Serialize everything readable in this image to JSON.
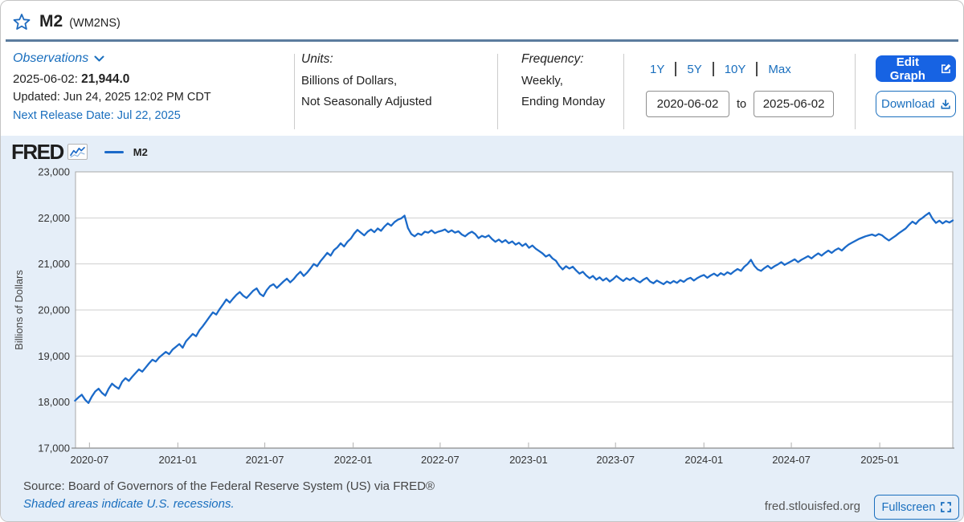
{
  "header": {
    "title": "M2",
    "series_id": "(WM2NS)"
  },
  "info": {
    "observations_label": "Observations",
    "latest_date": "2025-06-02:",
    "latest_value": "21,944.0",
    "updated": "Updated: Jun 24, 2025 12:02 PM CDT",
    "next_release": "Next Release Date: Jul 22, 2025",
    "units_label": "Units:",
    "units_line1": "Billions of Dollars,",
    "units_line2": "Not Seasonally Adjusted",
    "frequency_label": "Frequency:",
    "frequency_line1": "Weekly,",
    "frequency_line2": "Ending Monday",
    "ranges": [
      "1Y",
      "5Y",
      "10Y",
      "Max"
    ],
    "date_from": "2020-06-02",
    "to_label": "to",
    "date_to": "2025-06-02",
    "edit_graph_label": "Edit Graph",
    "download_label": "Download"
  },
  "chart": {
    "logo_text": "FRED",
    "legend_label": "M2",
    "site": "fred.stlouisfed.org",
    "fullscreen_label": "Fullscreen",
    "footer_source": "Source: Board of Governors of the Federal Reserve System (US) via FRED®",
    "footer_note": "Shaded areas indicate U.S. recessions."
  },
  "colors": {
    "line_blue": "#1b6ac9",
    "link_blue": "#1a6fbe",
    "button_blue": "#1763e3",
    "header_rule": "#5b7c9e",
    "chart_bg": "#e5eef8",
    "grid_gray": "#cfcfcf"
  },
  "chart_data": {
    "type": "line",
    "title": "M2",
    "ylabel": "Billions of Dollars",
    "ylim": [
      17000,
      23000
    ],
    "yticks": [
      17000,
      18000,
      19000,
      20000,
      21000,
      22000,
      23000
    ],
    "xtick_labels": [
      "2020-07",
      "2021-01",
      "2021-07",
      "2022-01",
      "2022-07",
      "2023-01",
      "2023-07",
      "2024-01",
      "2024-07",
      "2025-01"
    ],
    "x_range": [
      "2020-06-02",
      "2025-06-02"
    ],
    "grid": "horizontal",
    "legend_position": "top-left",
    "series": [
      {
        "name": "M2",
        "points": [
          [
            "2020-06-01",
            18030
          ],
          [
            "2020-06-08",
            18100
          ],
          [
            "2020-06-15",
            18160
          ],
          [
            "2020-06-22",
            18050
          ],
          [
            "2020-06-29",
            17980
          ],
          [
            "2020-07-06",
            18120
          ],
          [
            "2020-07-13",
            18230
          ],
          [
            "2020-07-20",
            18290
          ],
          [
            "2020-07-27",
            18200
          ],
          [
            "2020-08-03",
            18140
          ],
          [
            "2020-08-10",
            18290
          ],
          [
            "2020-08-17",
            18400
          ],
          [
            "2020-08-24",
            18340
          ],
          [
            "2020-08-31",
            18290
          ],
          [
            "2020-09-07",
            18440
          ],
          [
            "2020-09-14",
            18520
          ],
          [
            "2020-09-21",
            18460
          ],
          [
            "2020-09-28",
            18550
          ],
          [
            "2020-10-05",
            18630
          ],
          [
            "2020-10-12",
            18710
          ],
          [
            "2020-10-19",
            18660
          ],
          [
            "2020-10-26",
            18750
          ],
          [
            "2020-11-02",
            18840
          ],
          [
            "2020-11-09",
            18920
          ],
          [
            "2020-11-16",
            18880
          ],
          [
            "2020-11-23",
            18970
          ],
          [
            "2020-11-30",
            19030
          ],
          [
            "2020-12-07",
            19090
          ],
          [
            "2020-12-14",
            19040
          ],
          [
            "2020-12-21",
            19140
          ],
          [
            "2020-12-28",
            19200
          ],
          [
            "2021-01-04",
            19260
          ],
          [
            "2021-01-11",
            19180
          ],
          [
            "2021-01-18",
            19320
          ],
          [
            "2021-01-25",
            19400
          ],
          [
            "2021-02-01",
            19480
          ],
          [
            "2021-02-08",
            19430
          ],
          [
            "2021-02-15",
            19560
          ],
          [
            "2021-02-22",
            19650
          ],
          [
            "2021-03-01",
            19750
          ],
          [
            "2021-03-08",
            19850
          ],
          [
            "2021-03-15",
            19950
          ],
          [
            "2021-03-22",
            19900
          ],
          [
            "2021-03-29",
            20020
          ],
          [
            "2021-04-05",
            20120
          ],
          [
            "2021-04-12",
            20230
          ],
          [
            "2021-04-19",
            20160
          ],
          [
            "2021-04-26",
            20250
          ],
          [
            "2021-05-03",
            20330
          ],
          [
            "2021-05-10",
            20390
          ],
          [
            "2021-05-17",
            20310
          ],
          [
            "2021-05-24",
            20260
          ],
          [
            "2021-06-07",
            20420
          ],
          [
            "2021-06-14",
            20470
          ],
          [
            "2021-06-21",
            20350
          ],
          [
            "2021-06-28",
            20300
          ],
          [
            "2021-07-05",
            20430
          ],
          [
            "2021-07-12",
            20520
          ],
          [
            "2021-07-19",
            20560
          ],
          [
            "2021-07-26",
            20480
          ],
          [
            "2021-08-02",
            20550
          ],
          [
            "2021-08-09",
            20620
          ],
          [
            "2021-08-16",
            20680
          ],
          [
            "2021-08-23",
            20600
          ],
          [
            "2021-08-30",
            20670
          ],
          [
            "2021-09-06",
            20760
          ],
          [
            "2021-09-13",
            20830
          ],
          [
            "2021-09-20",
            20740
          ],
          [
            "2021-09-27",
            20810
          ],
          [
            "2021-10-04",
            20900
          ],
          [
            "2021-10-11",
            21000
          ],
          [
            "2021-10-18",
            20950
          ],
          [
            "2021-10-25",
            21060
          ],
          [
            "2021-11-01",
            21150
          ],
          [
            "2021-11-08",
            21240
          ],
          [
            "2021-11-15",
            21180
          ],
          [
            "2021-11-22",
            21300
          ],
          [
            "2021-11-29",
            21360
          ],
          [
            "2021-12-06",
            21450
          ],
          [
            "2021-12-13",
            21380
          ],
          [
            "2021-12-20",
            21480
          ],
          [
            "2021-12-27",
            21550
          ],
          [
            "2022-01-03",
            21660
          ],
          [
            "2022-01-10",
            21740
          ],
          [
            "2022-01-17",
            21680
          ],
          [
            "2022-01-24",
            21620
          ],
          [
            "2022-01-31",
            21700
          ],
          [
            "2022-02-07",
            21750
          ],
          [
            "2022-02-14",
            21690
          ],
          [
            "2022-02-21",
            21770
          ],
          [
            "2022-02-28",
            21720
          ],
          [
            "2022-03-07",
            21810
          ],
          [
            "2022-03-14",
            21880
          ],
          [
            "2022-03-21",
            21830
          ],
          [
            "2022-03-28",
            21910
          ],
          [
            "2022-04-04",
            21960
          ],
          [
            "2022-04-11",
            21990
          ],
          [
            "2022-04-18",
            22050
          ],
          [
            "2022-04-25",
            21780
          ],
          [
            "2022-05-02",
            21650
          ],
          [
            "2022-05-09",
            21600
          ],
          [
            "2022-05-16",
            21660
          ],
          [
            "2022-05-23",
            21630
          ],
          [
            "2022-05-30",
            21700
          ],
          [
            "2022-06-06",
            21680
          ],
          [
            "2022-06-13",
            21730
          ],
          [
            "2022-06-20",
            21670
          ],
          [
            "2022-06-27",
            21700
          ],
          [
            "2022-07-04",
            21720
          ],
          [
            "2022-07-11",
            21750
          ],
          [
            "2022-07-18",
            21690
          ],
          [
            "2022-07-25",
            21730
          ],
          [
            "2022-08-01",
            21680
          ],
          [
            "2022-08-08",
            21710
          ],
          [
            "2022-08-15",
            21640
          ],
          [
            "2022-08-22",
            21600
          ],
          [
            "2022-08-29",
            21660
          ],
          [
            "2022-09-05",
            21700
          ],
          [
            "2022-09-12",
            21650
          ],
          [
            "2022-09-19",
            21560
          ],
          [
            "2022-09-26",
            21610
          ],
          [
            "2022-10-03",
            21580
          ],
          [
            "2022-10-10",
            21620
          ],
          [
            "2022-10-17",
            21540
          ],
          [
            "2022-10-24",
            21480
          ],
          [
            "2022-10-31",
            21530
          ],
          [
            "2022-11-07",
            21470
          ],
          [
            "2022-11-14",
            21520
          ],
          [
            "2022-11-21",
            21450
          ],
          [
            "2022-11-28",
            21490
          ],
          [
            "2022-12-05",
            21420
          ],
          [
            "2022-12-12",
            21460
          ],
          [
            "2022-12-19",
            21390
          ],
          [
            "2022-12-26",
            21440
          ],
          [
            "2023-01-02",
            21350
          ],
          [
            "2023-01-09",
            21400
          ],
          [
            "2023-01-16",
            21330
          ],
          [
            "2023-01-23",
            21280
          ],
          [
            "2023-01-30",
            21230
          ],
          [
            "2023-02-06",
            21160
          ],
          [
            "2023-02-13",
            21200
          ],
          [
            "2023-02-20",
            21120
          ],
          [
            "2023-02-27",
            21070
          ],
          [
            "2023-03-06",
            20960
          ],
          [
            "2023-03-13",
            20880
          ],
          [
            "2023-03-20",
            20950
          ],
          [
            "2023-03-27",
            20900
          ],
          [
            "2023-04-03",
            20940
          ],
          [
            "2023-04-10",
            20860
          ],
          [
            "2023-04-17",
            20790
          ],
          [
            "2023-04-24",
            20830
          ],
          [
            "2023-05-01",
            20750
          ],
          [
            "2023-05-08",
            20690
          ],
          [
            "2023-05-15",
            20740
          ],
          [
            "2023-05-22",
            20660
          ],
          [
            "2023-05-29",
            20710
          ],
          [
            "2023-06-05",
            20640
          ],
          [
            "2023-06-12",
            20690
          ],
          [
            "2023-06-19",
            20620
          ],
          [
            "2023-06-26",
            20670
          ],
          [
            "2023-07-03",
            20740
          ],
          [
            "2023-07-10",
            20680
          ],
          [
            "2023-07-17",
            20630
          ],
          [
            "2023-07-24",
            20690
          ],
          [
            "2023-07-31",
            20650
          ],
          [
            "2023-08-07",
            20700
          ],
          [
            "2023-08-14",
            20640
          ],
          [
            "2023-08-21",
            20600
          ],
          [
            "2023-08-28",
            20660
          ],
          [
            "2023-09-04",
            20700
          ],
          [
            "2023-09-11",
            20620
          ],
          [
            "2023-09-18",
            20580
          ],
          [
            "2023-09-25",
            20640
          ],
          [
            "2023-10-02",
            20600
          ],
          [
            "2023-10-09",
            20560
          ],
          [
            "2023-10-16",
            20620
          ],
          [
            "2023-10-23",
            20580
          ],
          [
            "2023-10-30",
            20630
          ],
          [
            "2023-11-06",
            20590
          ],
          [
            "2023-11-13",
            20650
          ],
          [
            "2023-11-20",
            20610
          ],
          [
            "2023-11-27",
            20670
          ],
          [
            "2023-12-04",
            20700
          ],
          [
            "2023-12-11",
            20640
          ],
          [
            "2023-12-18",
            20690
          ],
          [
            "2023-12-25",
            20730
          ],
          [
            "2024-01-01",
            20760
          ],
          [
            "2024-01-08",
            20700
          ],
          [
            "2024-01-15",
            20750
          ],
          [
            "2024-01-22",
            20790
          ],
          [
            "2024-01-29",
            20740
          ],
          [
            "2024-02-05",
            20800
          ],
          [
            "2024-02-12",
            20760
          ],
          [
            "2024-02-19",
            20820
          ],
          [
            "2024-02-26",
            20780
          ],
          [
            "2024-03-04",
            20840
          ],
          [
            "2024-03-11",
            20890
          ],
          [
            "2024-03-18",
            20850
          ],
          [
            "2024-03-25",
            20940
          ],
          [
            "2024-04-01",
            21000
          ],
          [
            "2024-04-08",
            21090
          ],
          [
            "2024-04-15",
            20960
          ],
          [
            "2024-04-22",
            20880
          ],
          [
            "2024-04-29",
            20850
          ],
          [
            "2024-05-06",
            20910
          ],
          [
            "2024-05-13",
            20960
          ],
          [
            "2024-05-20",
            20900
          ],
          [
            "2024-05-27",
            20950
          ],
          [
            "2024-06-03",
            20990
          ],
          [
            "2024-06-10",
            21040
          ],
          [
            "2024-06-17",
            20980
          ],
          [
            "2024-06-24",
            21020
          ],
          [
            "2024-07-01",
            21060
          ],
          [
            "2024-07-08",
            21100
          ],
          [
            "2024-07-15",
            21040
          ],
          [
            "2024-07-22",
            21090
          ],
          [
            "2024-07-29",
            21130
          ],
          [
            "2024-08-05",
            21170
          ],
          [
            "2024-08-12",
            21120
          ],
          [
            "2024-08-19",
            21180
          ],
          [
            "2024-08-26",
            21230
          ],
          [
            "2024-09-02",
            21180
          ],
          [
            "2024-09-09",
            21240
          ],
          [
            "2024-09-16",
            21290
          ],
          [
            "2024-09-23",
            21240
          ],
          [
            "2024-09-30",
            21300
          ],
          [
            "2024-10-07",
            21340
          ],
          [
            "2024-10-14",
            21290
          ],
          [
            "2024-10-21",
            21360
          ],
          [
            "2024-10-28",
            21420
          ],
          [
            "2024-11-04",
            21460
          ],
          [
            "2024-11-11",
            21500
          ],
          [
            "2024-11-18",
            21540
          ],
          [
            "2024-11-25",
            21570
          ],
          [
            "2024-12-02",
            21600
          ],
          [
            "2024-12-09",
            21620
          ],
          [
            "2024-12-16",
            21640
          ],
          [
            "2024-12-23",
            21610
          ],
          [
            "2024-12-30",
            21650
          ],
          [
            "2025-01-06",
            21620
          ],
          [
            "2025-01-13",
            21560
          ],
          [
            "2025-01-20",
            21510
          ],
          [
            "2025-01-27",
            21560
          ],
          [
            "2025-02-03",
            21610
          ],
          [
            "2025-02-10",
            21670
          ],
          [
            "2025-02-17",
            21720
          ],
          [
            "2025-02-24",
            21770
          ],
          [
            "2025-03-03",
            21850
          ],
          [
            "2025-03-10",
            21920
          ],
          [
            "2025-03-17",
            21870
          ],
          [
            "2025-03-24",
            21950
          ],
          [
            "2025-03-31",
            22000
          ],
          [
            "2025-04-07",
            22060
          ],
          [
            "2025-04-14",
            22110
          ],
          [
            "2025-04-21",
            21980
          ],
          [
            "2025-04-28",
            21890
          ],
          [
            "2025-05-05",
            21940
          ],
          [
            "2025-05-12",
            21880
          ],
          [
            "2025-05-19",
            21930
          ],
          [
            "2025-05-26",
            21900
          ],
          [
            "2025-06-02",
            21944
          ]
        ]
      }
    ]
  }
}
